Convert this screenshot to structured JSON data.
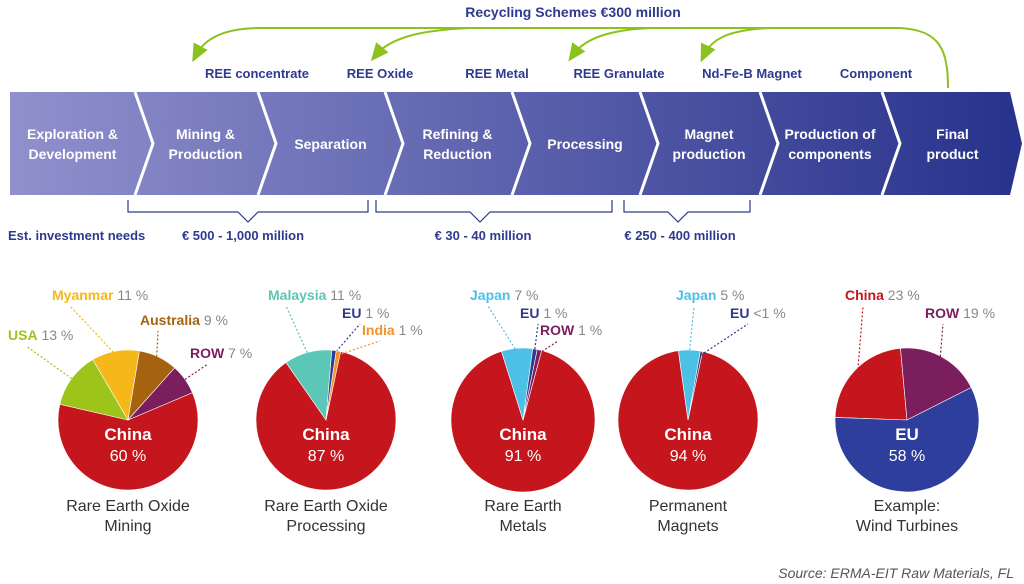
{
  "diagram": {
    "recycling": "Recycling Schemes €300 million",
    "products": [
      "REE concentrate",
      "REE Oxide",
      "REE Metal",
      "REE Granulate",
      "Nd-Fe-B Magnet",
      "Component"
    ],
    "stages": [
      "Exploration &\nDevelopment",
      "Mining &\nProduction",
      "Separation",
      "Refining &\nReduction",
      "Processing",
      "Magnet\nproduction",
      "Production of\ncomponents",
      "Final\nproduct"
    ],
    "investment_label": "Est. investment needs",
    "investments": [
      "€ 500 - 1,000 million",
      "€ 30 - 40 million",
      "€ 250 - 400 million"
    ]
  },
  "chart_data": [
    {
      "type": "pie",
      "title": "Rare Earth Oxide\nMining",
      "categories": [
        "China",
        "USA",
        "Myanmar",
        "Australia",
        "ROW"
      ],
      "values": [
        60,
        13,
        11,
        9,
        7
      ],
      "value_labels": [
        "60 %",
        "13 %",
        "11 %",
        "9 %",
        "7 %"
      ],
      "colors": [
        "#c4161c",
        "#9dc41a",
        "#f5b719",
        "#a5620f",
        "#7b1e5e"
      ]
    },
    {
      "type": "pie",
      "title": "Rare Earth Oxide\nProcessing",
      "categories": [
        "China",
        "Malaysia",
        "EU",
        "India"
      ],
      "values": [
        87,
        11,
        1,
        1
      ],
      "value_labels": [
        "87 %",
        "11 %",
        "1 %",
        "1 %"
      ],
      "colors": [
        "#c4161c",
        "#5cc7b6",
        "#2e3a8f",
        "#f3912a"
      ]
    },
    {
      "type": "pie",
      "title": "Rare Earth\nMetals",
      "categories": [
        "China",
        "Japan",
        "EU",
        "ROW"
      ],
      "values": [
        91,
        7,
        1,
        1
      ],
      "value_labels": [
        "91 %",
        "7 %",
        "1 %",
        "1 %"
      ],
      "colors": [
        "#c4161c",
        "#4dc0e6",
        "#2e3a8f",
        "#7b1e5e"
      ]
    },
    {
      "type": "pie",
      "title": "Permanent\nMagnets",
      "categories": [
        "China",
        "Japan",
        "EU"
      ],
      "values": [
        94,
        5,
        0.5
      ],
      "value_labels": [
        "94 %",
        "5 %",
        "<1 %"
      ],
      "colors": [
        "#c4161c",
        "#4dc0e6",
        "#2e3a8f"
      ]
    },
    {
      "type": "pie",
      "title": "Example:\nWind Turbines",
      "categories": [
        "China",
        "ROW",
        "EU"
      ],
      "values": [
        23,
        19,
        58
      ],
      "value_labels": [
        "23 %",
        "19 %",
        "58 %"
      ],
      "colors": [
        "#c4161c",
        "#7b1e5e",
        "#2e3e9c"
      ]
    }
  ],
  "source": "Source: ERMA-EIT Raw Materials, FL"
}
